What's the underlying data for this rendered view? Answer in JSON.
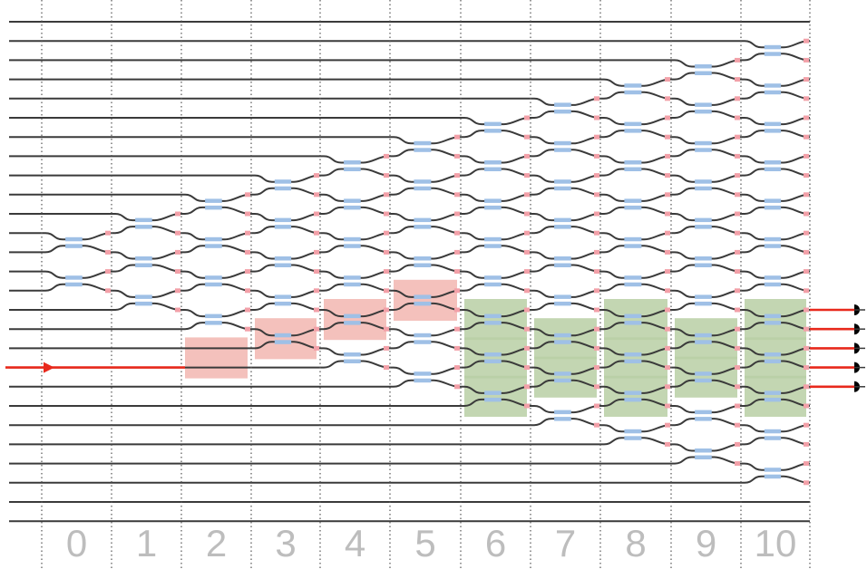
{
  "diagram": {
    "waveguide_count": 27,
    "step_labels": [
      "0",
      "1",
      "2",
      "3",
      "4",
      "5",
      "6",
      "7",
      "8",
      "9",
      "10"
    ],
    "colors": {
      "waveguide": "#3a3a3a",
      "phase_shifter": "#9fc0e6",
      "output_marker": "#f2a0a8",
      "highlight_path": "#f2b6b0",
      "highlight_output": "#b9cfa4",
      "signal": "#e8291c",
      "detector": "#000000",
      "separator": "#555555",
      "label": "#bdbdbd"
    },
    "steps": [
      {
        "step": 0,
        "pair_start": 11,
        "pair_count": 4
      },
      {
        "step": 1,
        "pair_start": 10,
        "pair_count": 6
      },
      {
        "step": 2,
        "pair_start": 9,
        "pair_count": 8
      },
      {
        "step": 3,
        "pair_start": 8,
        "pair_count": 10
      },
      {
        "step": 4,
        "pair_start": 7,
        "pair_count": 12
      },
      {
        "step": 5,
        "pair_start": 6,
        "pair_count": 14
      },
      {
        "step": 6,
        "pair_start": 5,
        "pair_count": 16
      },
      {
        "step": 7,
        "pair_start": 4,
        "pair_count": 18
      },
      {
        "step": 8,
        "pair_start": 3,
        "pair_count": 20
      },
      {
        "step": 9,
        "pair_start": 2,
        "pair_count": 22
      },
      {
        "step": 10,
        "pair_start": 1,
        "pair_count": 24
      }
    ],
    "input_waveguide": 18,
    "signal_path": [
      {
        "step": 2,
        "pair_top": 17
      },
      {
        "step": 3,
        "pair_top": 16
      },
      {
        "step": 4,
        "pair_top": 15
      },
      {
        "step": 5,
        "pair_top": 14
      }
    ],
    "output_couplers": [
      {
        "step": 6,
        "pair_tops": [
          15,
          17,
          19
        ]
      },
      {
        "step": 7,
        "pair_tops": [
          16,
          18
        ]
      },
      {
        "step": 8,
        "pair_tops": [
          15,
          17,
          19
        ]
      },
      {
        "step": 9,
        "pair_tops": [
          16,
          18
        ]
      },
      {
        "step": 10,
        "pair_tops": [
          15,
          17,
          19
        ]
      }
    ],
    "detector_waveguides": [
      15,
      16,
      17,
      18,
      19
    ]
  }
}
